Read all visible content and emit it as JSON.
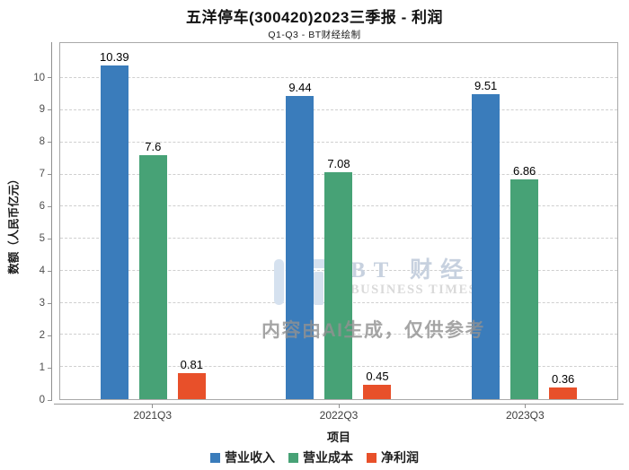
{
  "chart_data": {
    "type": "bar",
    "title": "五洋停车(300420)2023三季报 - 利润",
    "subtitle": "Q1-Q3 - BT财经绘制",
    "xlabel": "项目",
    "ylabel": "数额（人民币亿元）",
    "categories": [
      "2021Q3",
      "2022Q3",
      "2023Q3"
    ],
    "series": [
      {
        "name": "营业收入",
        "color": "#3a7cbb",
        "values": [
          10.39,
          9.44,
          9.51
        ]
      },
      {
        "name": "营业成本",
        "color": "#47a276",
        "values": [
          7.6,
          7.08,
          6.86
        ]
      },
      {
        "name": "净利润",
        "color": "#e8502a",
        "values": [
          0.81,
          0.45,
          0.36
        ]
      }
    ],
    "ylim": [
      0,
      11.1
    ],
    "yticks": [
      0,
      1,
      2,
      3,
      4,
      5,
      6,
      7,
      8,
      9,
      10
    ],
    "grid": "horizontal-dashed",
    "legend_position": "bottom"
  },
  "watermark": {
    "logo_text": "BT 财经",
    "logo_subtext": "BUSINESS TIMES",
    "ai_notice": "内容由AI生成，仅供参考",
    "logo_bar_color": "#d5e1ef",
    "logo_dot_color": "#f3cdca"
  }
}
